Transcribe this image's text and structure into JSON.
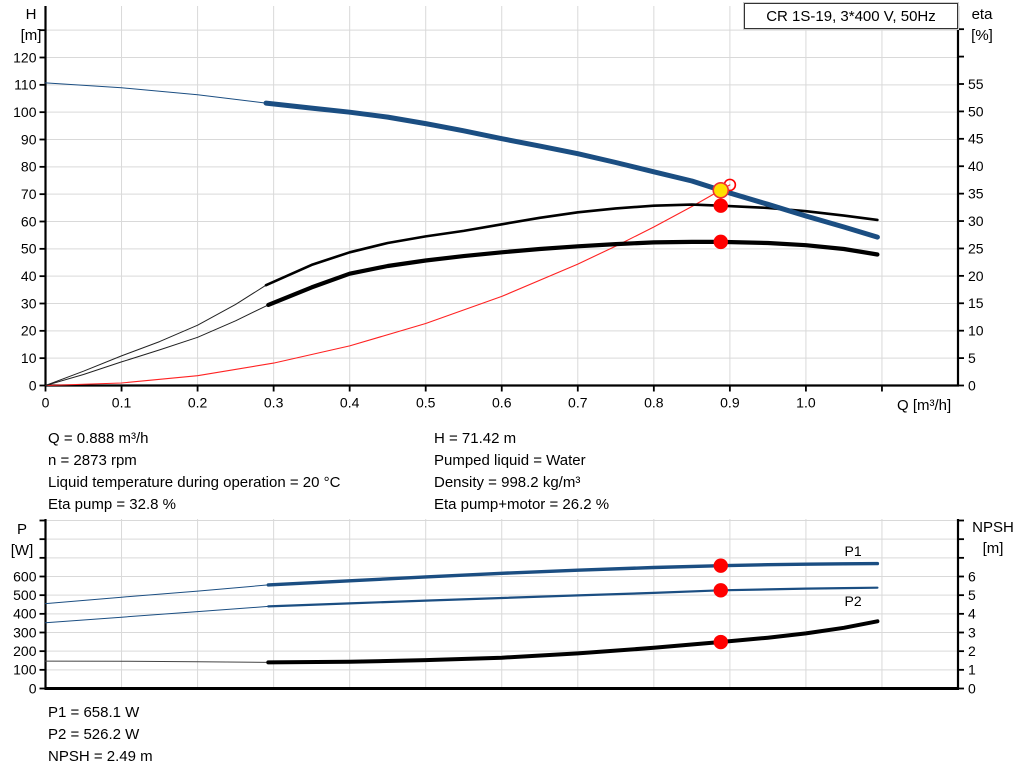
{
  "title_box": "CR 1S-19, 3*400 V, 50Hz",
  "colors": {
    "curve_blue": "#1b4e82",
    "red": "#ff0000",
    "yellow": "#ffdf00",
    "grid": "#d9d9d9",
    "axis": "#000000",
    "label_blue": "#1b4e82"
  },
  "info_blocks": {
    "top_left": [
      "Q = 0.888 m³/h",
      "n = 2873 rpm",
      "Liquid temperature during operation = 20 °C",
      "Eta pump = 32.8 %"
    ],
    "top_right": [
      "H = 71.42 m",
      "Pumped liquid = Water",
      "Density = 998.2 kg/m³",
      "Eta pump+motor = 26.2 %"
    ],
    "bottom": [
      "P1 = 658.1 W",
      "P2 = 526.2 W",
      "NPSH = 2.49 m"
    ]
  },
  "chart_data": [
    {
      "id": "qh-eta",
      "type": "line",
      "title": "CR 1S-19, 3*400 V, 50Hz",
      "x_axis": {
        "label": "Q [m³/h]",
        "min": 0,
        "max": 1.2,
        "ticks": [
          0,
          0.1,
          0.2,
          0.3,
          0.4,
          0.5,
          0.6,
          0.7,
          0.8,
          0.9,
          1.0
        ],
        "labels": [
          "0",
          "0.1",
          "0.2",
          "0.3",
          "0.4",
          "0.5",
          "0.6",
          "0.7",
          "0.8",
          "0.9",
          "1.0"
        ],
        "minor": [
          1.1
        ],
        "grid": [
          0.1,
          0.2,
          0.3,
          0.4,
          0.5,
          0.6,
          0.7,
          0.8,
          0.9,
          1.0,
          1.1
        ]
      },
      "y_left": {
        "title_lines": [
          "H",
          "[m]"
        ],
        "min": 0,
        "max": 138,
        "ticks": [
          0,
          10,
          20,
          30,
          40,
          50,
          60,
          70,
          80,
          90,
          100,
          110,
          120
        ],
        "labels": [
          "0",
          "10",
          "20",
          "30",
          "40",
          "50",
          "60",
          "70",
          "80",
          "90",
          "100",
          "110",
          "120"
        ],
        "minor": [
          130
        ],
        "grid": [
          10,
          20,
          30,
          40,
          50,
          60,
          70,
          80,
          90,
          100,
          110,
          120,
          130
        ]
      },
      "y_right": {
        "title_lines": [
          "eta",
          "[%]"
        ],
        "min": 0,
        "max": 69,
        "ticks": [
          0,
          5,
          10,
          15,
          20,
          25,
          30,
          35,
          40,
          45,
          50,
          55
        ],
        "labels": [
          "0",
          "5",
          "10",
          "15",
          "20",
          "25",
          "30",
          "35",
          "40",
          "45",
          "50",
          "55"
        ],
        "minor": [
          60,
          65
        ]
      },
      "series": [
        {
          "name": "system-curve",
          "axis": "right_is_false_left",
          "y_axis": "left",
          "color": "#ff2222",
          "width": 1.1,
          "points": [
            [
              0,
              0
            ],
            [
              0.1,
              0.9
            ],
            [
              0.2,
              3.6
            ],
            [
              0.3,
              8.2
            ],
            [
              0.4,
              14.5
            ],
            [
              0.5,
              22.7
            ],
            [
              0.6,
              32.6
            ],
            [
              0.7,
              44.4
            ],
            [
              0.75,
              51.0
            ],
            [
              0.8,
              58.0
            ],
            [
              0.85,
              65.5
            ],
            [
              0.9,
              73.4
            ]
          ]
        },
        {
          "name": "eta-pump-thin",
          "y_axis": "right",
          "color": "#222222",
          "width": 1,
          "points": [
            [
              0,
              0
            ],
            [
              0.05,
              2.6
            ],
            [
              0.1,
              5.4
            ],
            [
              0.15,
              8.0
            ],
            [
              0.2,
              11.0
            ],
            [
              0.25,
              14.8
            ],
            [
              0.29,
              18.3
            ]
          ]
        },
        {
          "name": "eta-pump",
          "y_axis": "right",
          "color": "#000000",
          "width": 2.6,
          "points": [
            [
              0.29,
              18.3
            ],
            [
              0.35,
              22.0
            ],
            [
              0.4,
              24.3
            ],
            [
              0.45,
              26.0
            ],
            [
              0.5,
              27.2
            ],
            [
              0.55,
              28.2
            ],
            [
              0.6,
              29.4
            ],
            [
              0.65,
              30.6
            ],
            [
              0.7,
              31.6
            ],
            [
              0.75,
              32.3
            ],
            [
              0.8,
              32.8
            ],
            [
              0.85,
              33.0
            ],
            [
              0.888,
              32.8
            ],
            [
              0.95,
              32.4
            ],
            [
              1.0,
              31.8
            ],
            [
              1.05,
              31.0
            ],
            [
              1.094,
              30.2
            ]
          ]
        },
        {
          "name": "eta-pump-motor-thin",
          "y_axis": "right",
          "color": "#222222",
          "width": 1,
          "points": [
            [
              0,
              0
            ],
            [
              0.05,
              2.0
            ],
            [
              0.1,
              4.3
            ],
            [
              0.15,
              6.5
            ],
            [
              0.2,
              8.8
            ],
            [
              0.25,
              11.8
            ],
            [
              0.293,
              14.7
            ]
          ]
        },
        {
          "name": "eta-pump-motor",
          "y_axis": "right",
          "color": "#000000",
          "width": 4.2,
          "points": [
            [
              0.293,
              14.7
            ],
            [
              0.35,
              17.9
            ],
            [
              0.4,
              20.4
            ],
            [
              0.45,
              21.8
            ],
            [
              0.5,
              22.8
            ],
            [
              0.55,
              23.6
            ],
            [
              0.6,
              24.3
            ],
            [
              0.65,
              24.9
            ],
            [
              0.7,
              25.4
            ],
            [
              0.75,
              25.8
            ],
            [
              0.8,
              26.1
            ],
            [
              0.85,
              26.2
            ],
            [
              0.888,
              26.2
            ],
            [
              0.95,
              26.0
            ],
            [
              1.0,
              25.6
            ],
            [
              1.05,
              24.9
            ],
            [
              1.094,
              23.9
            ]
          ]
        },
        {
          "name": "head-thin",
          "y_axis": "left",
          "color": "#1b4e82",
          "width": 1,
          "points": [
            [
              0,
              110.7
            ],
            [
              0.1,
              108.9
            ],
            [
              0.2,
              106.4
            ],
            [
              0.29,
              103.3
            ]
          ]
        },
        {
          "name": "head",
          "y_axis": "left",
          "color": "#1b4e82",
          "width": 5,
          "points": [
            [
              0.29,
              103.3
            ],
            [
              0.35,
              101.5
            ],
            [
              0.4,
              100.0
            ],
            [
              0.45,
              98.2
            ],
            [
              0.5,
              95.8
            ],
            [
              0.55,
              93.2
            ],
            [
              0.6,
              90.3
            ],
            [
              0.65,
              87.6
            ],
            [
              0.7,
              84.8
            ],
            [
              0.75,
              81.6
            ],
            [
              0.8,
              78.2
            ],
            [
              0.85,
              74.8
            ],
            [
              0.888,
              71.42
            ],
            [
              0.95,
              66.3
            ],
            [
              1.0,
              62.0
            ],
            [
              1.05,
              58.0
            ],
            [
              1.094,
              54.3
            ]
          ]
        }
      ],
      "markers": [
        {
          "name": "duty-point-requested",
          "shape": "ring",
          "x": 0.9,
          "y": 73.4,
          "y_axis": "left",
          "r": 5.5,
          "stroke": "#ff0000"
        },
        {
          "name": "duty-point",
          "shape": "dot",
          "x": 0.888,
          "y": 71.42,
          "y_axis": "left",
          "r": 7.5,
          "fill": "#ffdf00",
          "stroke": "#ee3333"
        },
        {
          "name": "eta-pump-point",
          "shape": "dot",
          "x": 0.888,
          "y": 32.8,
          "y_axis": "right",
          "r": 6.4,
          "fill": "#ff0000",
          "stroke": "#ff0000"
        },
        {
          "name": "eta-pump-motor-point",
          "shape": "dot",
          "x": 0.888,
          "y": 26.2,
          "y_axis": "right",
          "r": 6.4,
          "fill": "#ff0000",
          "stroke": "#ff0000"
        }
      ],
      "annotations": []
    },
    {
      "id": "power-npsh",
      "type": "line",
      "x_axis": {
        "label": "",
        "min": 0,
        "max": 1.2,
        "ticks": [],
        "labels": [],
        "minor": [],
        "grid": [
          0.1,
          0.2,
          0.3,
          0.4,
          0.5,
          0.6,
          0.7,
          0.8,
          0.9,
          1.0,
          1.1
        ]
      },
      "y_left": {
        "title_lines": [
          "P",
          "[W]"
        ],
        "min": 0,
        "max": 905,
        "ticks": [
          0,
          100,
          200,
          300,
          400,
          500,
          600
        ],
        "labels": [
          "0",
          "100",
          "200",
          "300",
          "400",
          "500",
          "600"
        ],
        "minor": [
          700,
          800,
          900
        ],
        "grid": [
          100,
          200,
          300,
          400,
          500,
          600,
          700,
          800,
          900
        ]
      },
      "y_right": {
        "title_lines": [
          "NPSH",
          "[m]"
        ],
        "min": 0,
        "max": 9,
        "ticks": [
          0,
          1,
          2,
          3,
          4,
          5,
          6
        ],
        "labels": [
          "0",
          "1",
          "2",
          "3",
          "4",
          "5",
          "6"
        ],
        "minor": [
          7,
          8,
          9
        ]
      },
      "series": [
        {
          "name": "p1-thin",
          "y_axis": "left",
          "color": "#1b4e82",
          "width": 1,
          "points": [
            [
              0,
              455
            ],
            [
              0.1,
              489
            ],
            [
              0.2,
              522
            ],
            [
              0.293,
              555
            ]
          ]
        },
        {
          "name": "p1",
          "y_axis": "left",
          "color": "#1b4e82",
          "width": 3.4,
          "points": [
            [
              0.293,
              555
            ],
            [
              0.4,
              577
            ],
            [
              0.5,
              598
            ],
            [
              0.6,
              617
            ],
            [
              0.7,
              634
            ],
            [
              0.8,
              648
            ],
            [
              0.888,
              658
            ],
            [
              0.95,
              663
            ],
            [
              1.0,
              666
            ],
            [
              1.05,
              668
            ],
            [
              1.094,
              669
            ]
          ]
        },
        {
          "name": "p2-thin",
          "y_axis": "left",
          "color": "#1b4e82",
          "width": 1,
          "points": [
            [
              0,
              352
            ],
            [
              0.1,
              382
            ],
            [
              0.2,
              412
            ],
            [
              0.293,
              440
            ]
          ]
        },
        {
          "name": "p2",
          "y_axis": "left",
          "color": "#1b4e82",
          "width": 2.2,
          "points": [
            [
              0.293,
              440
            ],
            [
              0.4,
              456
            ],
            [
              0.5,
              471
            ],
            [
              0.6,
              485
            ],
            [
              0.7,
              499
            ],
            [
              0.8,
              512
            ],
            [
              0.888,
              526
            ],
            [
              0.95,
              531
            ],
            [
              1.0,
              535
            ],
            [
              1.05,
              538
            ],
            [
              1.094,
              540
            ]
          ]
        },
        {
          "name": "npsh-thin",
          "y_axis": "right",
          "color": "#444444",
          "width": 1,
          "points": [
            [
              0,
              1.47
            ],
            [
              0.1,
              1.46
            ],
            [
              0.2,
              1.43
            ],
            [
              0.293,
              1.4
            ]
          ]
        },
        {
          "name": "npsh",
          "y_axis": "right",
          "color": "#000000",
          "width": 4,
          "points": [
            [
              0.293,
              1.4
            ],
            [
              0.4,
              1.43
            ],
            [
              0.5,
              1.52
            ],
            [
              0.6,
              1.65
            ],
            [
              0.7,
              1.88
            ],
            [
              0.8,
              2.18
            ],
            [
              0.888,
              2.49
            ],
            [
              0.95,
              2.72
            ],
            [
              1.0,
              2.95
            ],
            [
              1.05,
              3.25
            ],
            [
              1.094,
              3.6
            ]
          ]
        }
      ],
      "markers": [
        {
          "name": "p1-point",
          "shape": "dot",
          "x": 0.888,
          "y": 658,
          "y_axis": "left",
          "r": 6.4,
          "fill": "#ff0000",
          "stroke": "#ff0000"
        },
        {
          "name": "p2-point",
          "shape": "dot",
          "x": 0.888,
          "y": 526,
          "y_axis": "left",
          "r": 6.4,
          "fill": "#ff0000",
          "stroke": "#ff0000"
        },
        {
          "name": "npsh-point",
          "shape": "dot",
          "x": 0.888,
          "y": 2.49,
          "y_axis": "right",
          "r": 6.4,
          "fill": "#ff0000",
          "stroke": "#ff0000"
        }
      ],
      "annotations": [
        {
          "text": "P1",
          "x": 1.062,
          "y": 737,
          "y_axis": "left",
          "color": "#1b4e82"
        },
        {
          "text": "P2",
          "x": 1.062,
          "y": 469,
          "y_axis": "left",
          "color": "#1b4e82"
        }
      ]
    }
  ]
}
